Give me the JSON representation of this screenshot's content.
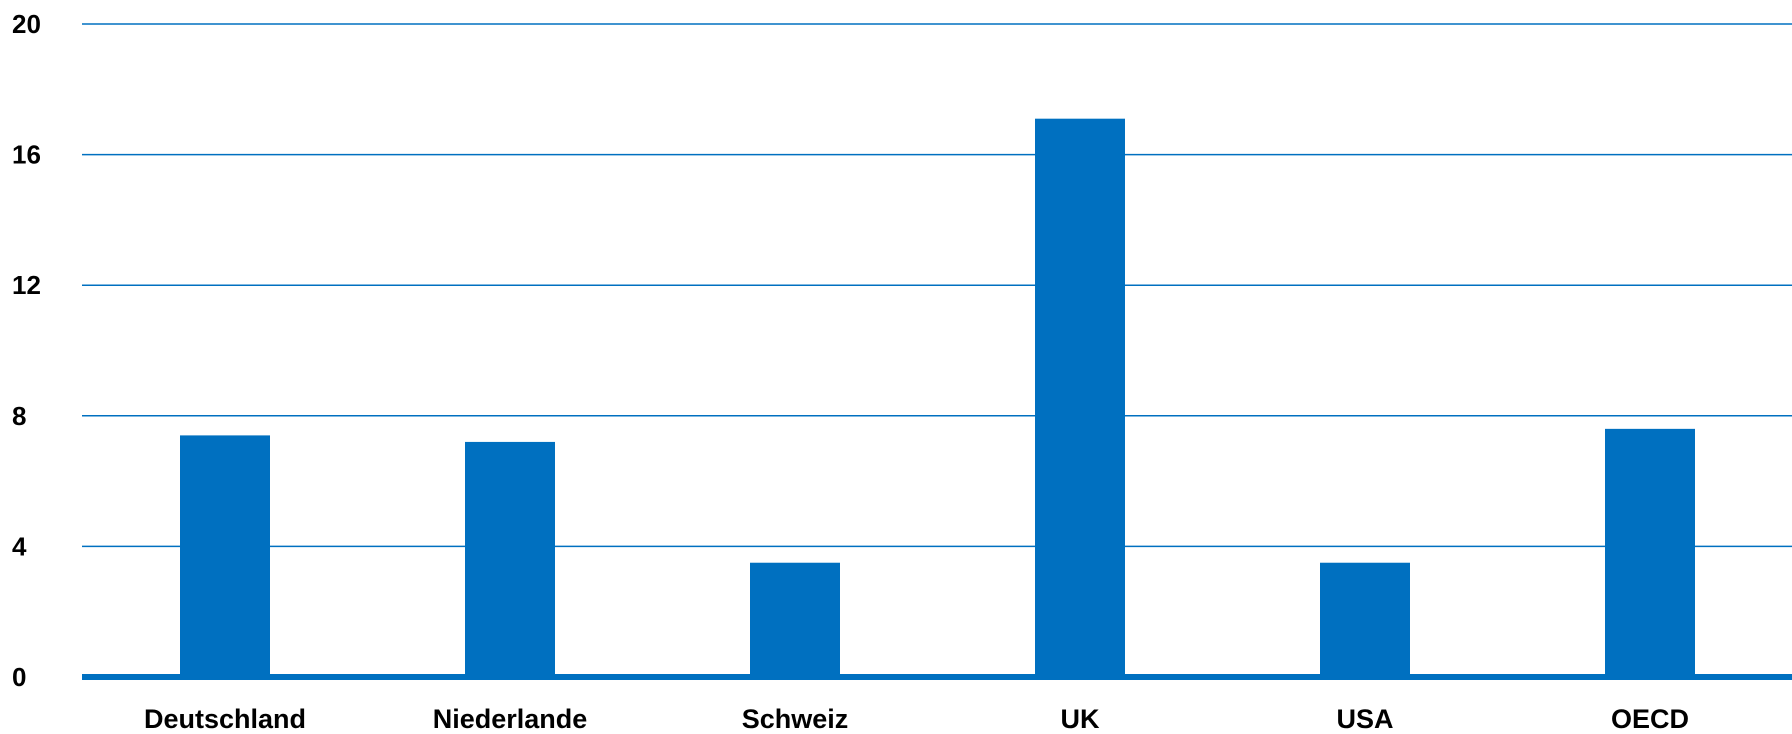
{
  "chart_data": {
    "type": "bar",
    "title": "",
    "xlabel": "",
    "ylabel": "",
    "categories": [
      "Deutschland",
      "Niederlande",
      "Schweiz",
      "UK",
      "USA",
      "OECD"
    ],
    "values": [
      7.4,
      7.2,
      3.5,
      17.1,
      3.5,
      7.6
    ],
    "ylim": [
      0,
      20
    ],
    "yticks": [
      0,
      4,
      8,
      12,
      16,
      20
    ],
    "ytick_labels": [
      "0",
      "4",
      "8",
      "12",
      "16",
      "20"
    ],
    "grid": true,
    "legend": "none",
    "colors": {
      "bar": "#0070C0",
      "grid": "#0070C0",
      "axis": "#0070C0",
      "text": "#000000"
    }
  }
}
